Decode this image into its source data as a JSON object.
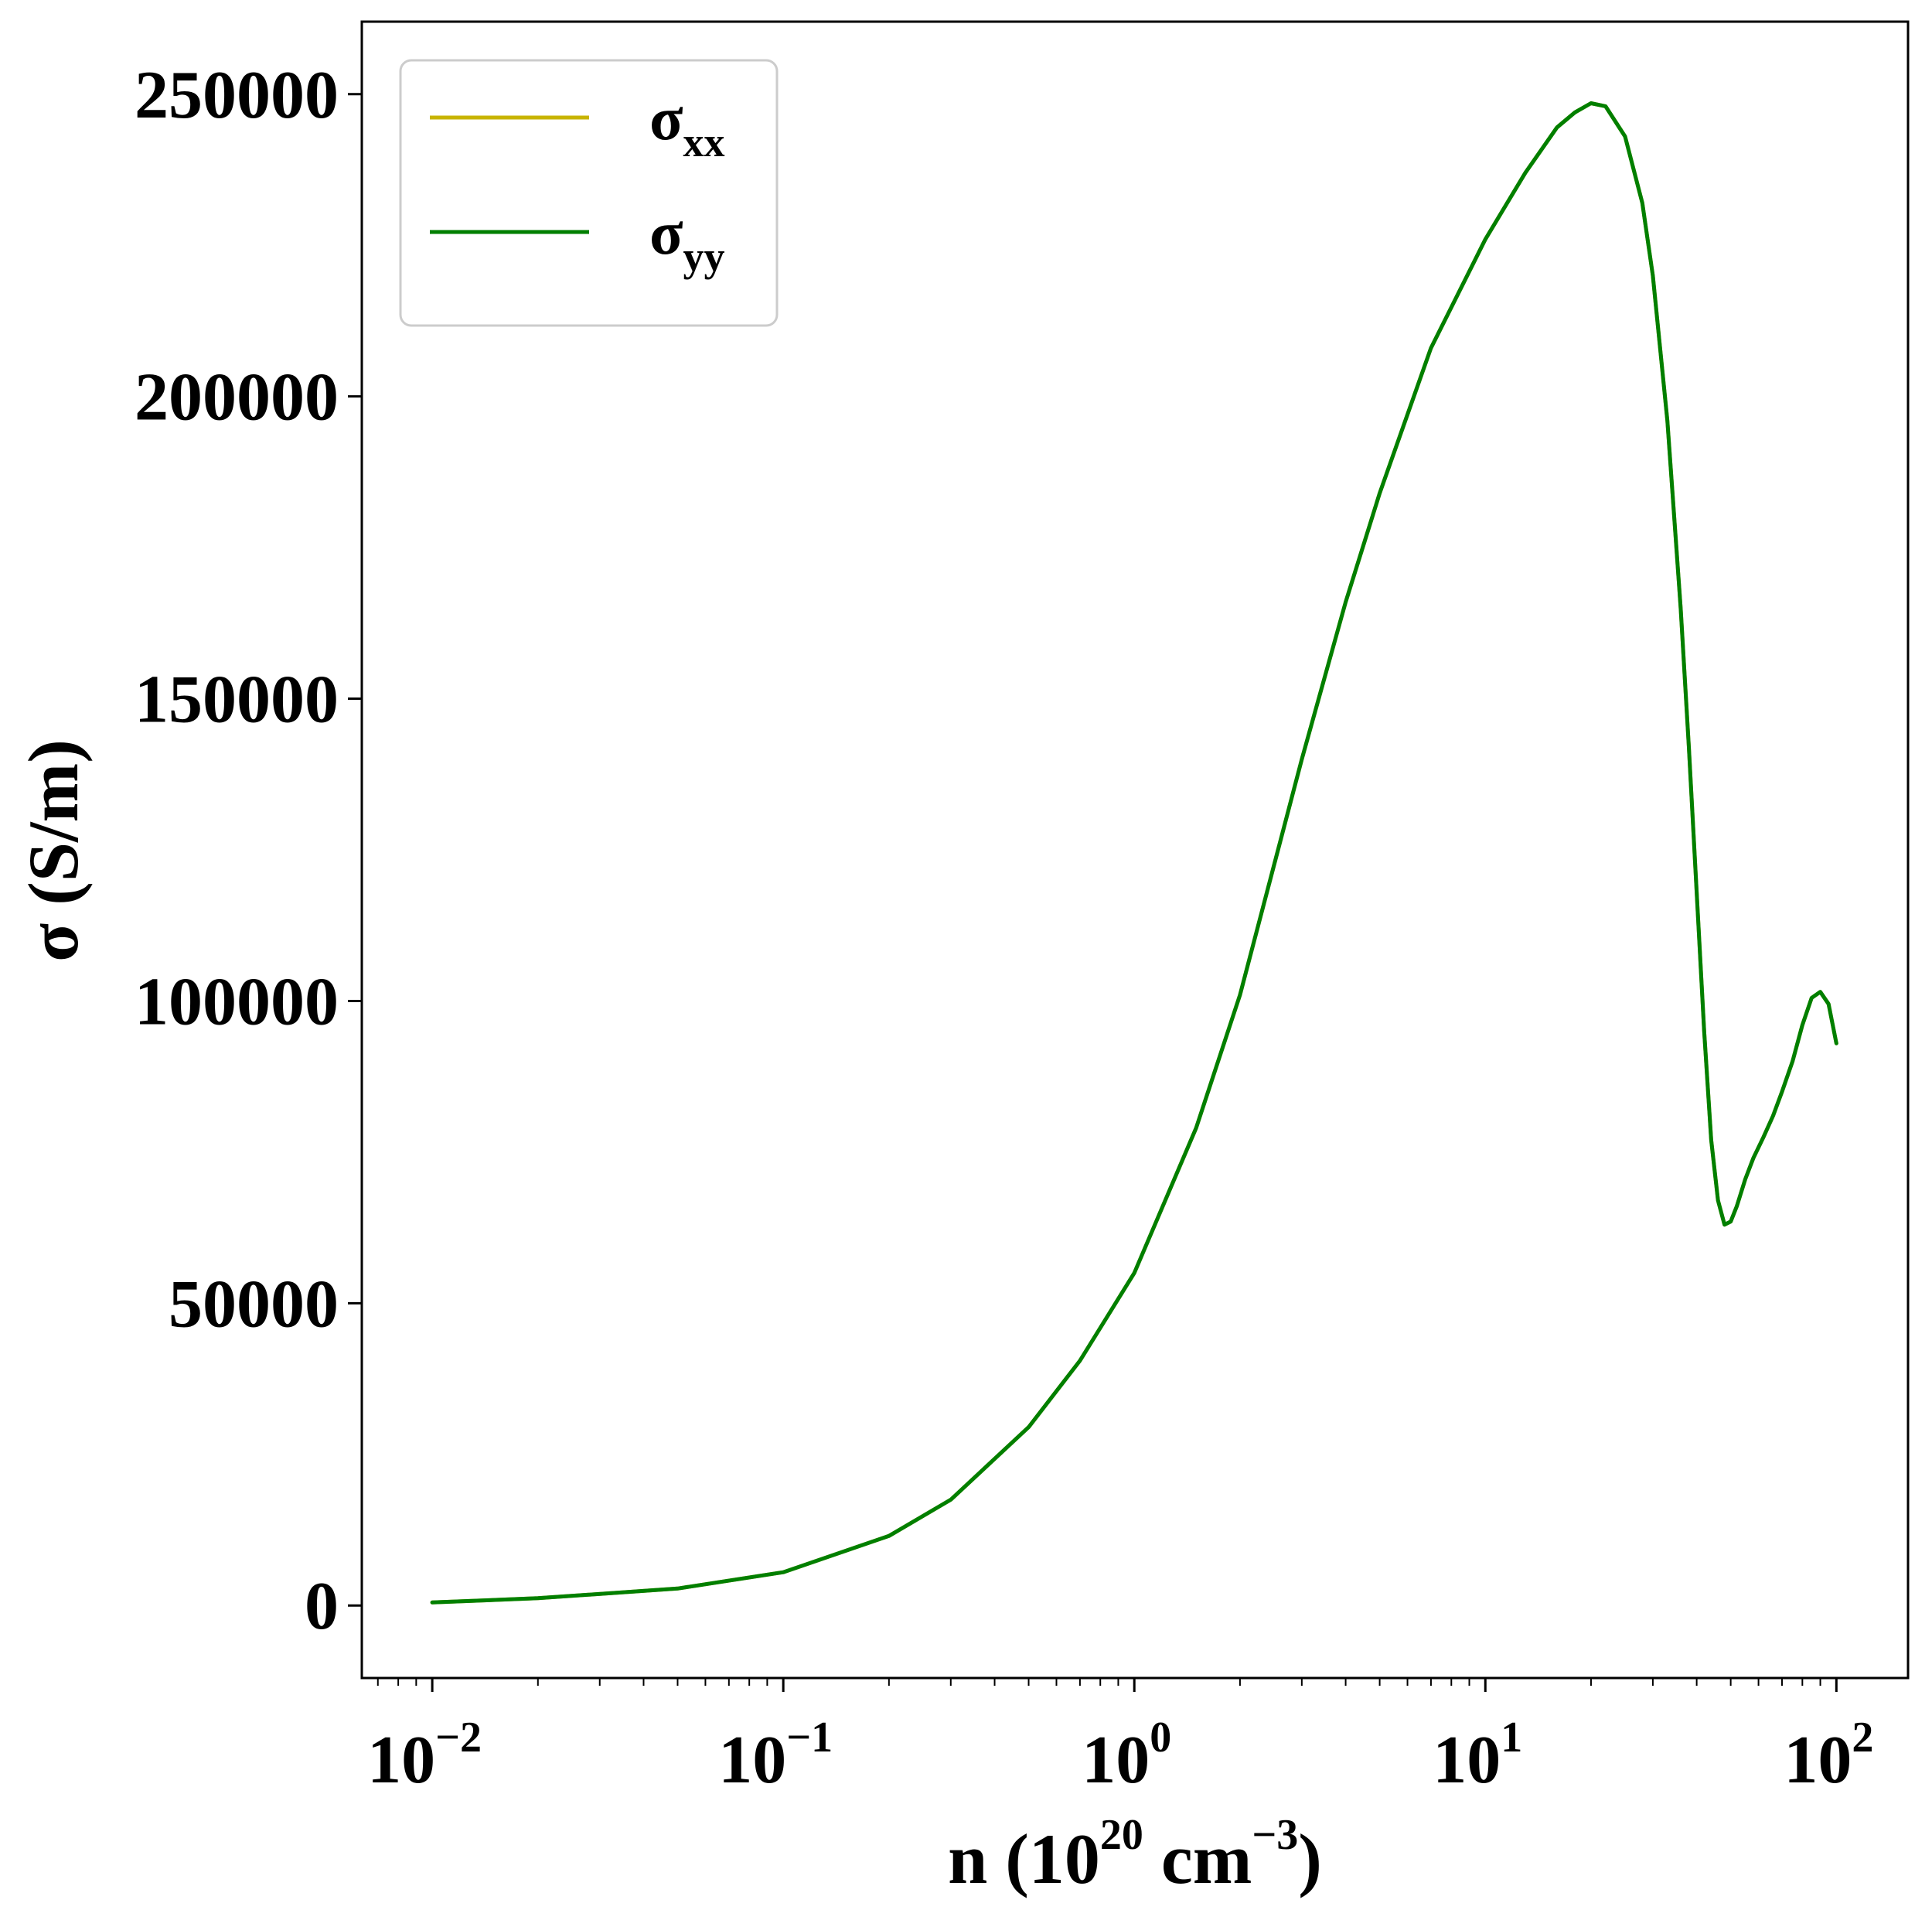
{
  "chart_data": {
    "type": "line",
    "xscale": "log",
    "xlim": [
      0.0063,
      160
    ],
    "ylim": [
      -12000,
      262000
    ],
    "xlabel": {
      "parts": [
        {
          "text": "n (10",
          "style": "normal"
        },
        {
          "text": "20",
          "style": "sup"
        },
        {
          "text": " cm",
          "style": "normal"
        },
        {
          "text": "−3",
          "style": "sup"
        },
        {
          "text": ")",
          "style": "normal"
        }
      ]
    },
    "ylabel": "σ (S/m)",
    "x_ticks": [
      {
        "value": 0.01,
        "base": "10",
        "exp": "−2"
      },
      {
        "value": 0.1,
        "base": "10",
        "exp": "−1"
      },
      {
        "value": 1,
        "base": "10",
        "exp": "0"
      },
      {
        "value": 10,
        "base": "10",
        "exp": "1"
      },
      {
        "value": 100,
        "base": "10",
        "exp": "2"
      }
    ],
    "y_ticks": [
      {
        "value": 0,
        "label": "0"
      },
      {
        "value": 50000,
        "label": "50000"
      },
      {
        "value": 100000,
        "label": "100000"
      },
      {
        "value": 150000,
        "label": "150000"
      },
      {
        "value": 200000,
        "label": "200000"
      },
      {
        "value": 250000,
        "label": "250000"
      }
    ],
    "legend": {
      "position": "top-left",
      "entries": [
        {
          "base": "σ",
          "sub": "xx",
          "color": "#c8b400"
        },
        {
          "base": "σ",
          "sub": "yy",
          "color": "#007f00"
        }
      ]
    },
    "grid": false,
    "series": [
      {
        "name": "σxx",
        "color": "#c8b400",
        "x": [
          0.01,
          0.02,
          0.05,
          0.1,
          0.2,
          0.3,
          0.5,
          0.7,
          1,
          1.5,
          2,
          3,
          4,
          5,
          7,
          10,
          13,
          16,
          18,
          20,
          22,
          25,
          28,
          30,
          33,
          36,
          38,
          40,
          42,
          44,
          46,
          48,
          50,
          52,
          55,
          58,
          62,
          66,
          70,
          75,
          80,
          85,
          90,
          95,
          100
        ],
        "y": [
          500,
          1200,
          2800,
          5500,
          11500,
          17500,
          29500,
          40500,
          55000,
          79000,
          101000,
          140000,
          166000,
          184000,
          208000,
          226000,
          237000,
          244500,
          247000,
          248500,
          248000,
          243000,
          232000,
          220000,
          196000,
          165000,
          142000,
          118000,
          95000,
          77000,
          67000,
          63000,
          63500,
          66000,
          70500,
          74000,
          77500,
          81000,
          85000,
          90000,
          96000,
          100500,
          101500,
          99500,
          93000
        ]
      },
      {
        "name": "σyy",
        "color": "#007f00",
        "x": [
          0.01,
          0.02,
          0.05,
          0.1,
          0.2,
          0.3,
          0.5,
          0.7,
          1,
          1.5,
          2,
          3,
          4,
          5,
          7,
          10,
          13,
          16,
          18,
          20,
          22,
          25,
          28,
          30,
          33,
          36,
          38,
          40,
          42,
          44,
          46,
          48,
          50,
          52,
          55,
          58,
          62,
          66,
          70,
          75,
          80,
          85,
          90,
          95,
          100
        ],
        "y": [
          500,
          1200,
          2800,
          5500,
          11500,
          17500,
          29500,
          40500,
          55000,
          79000,
          101000,
          140000,
          166000,
          184000,
          208000,
          226000,
          237000,
          244500,
          247000,
          248500,
          248000,
          243000,
          232000,
          220000,
          196000,
          165000,
          142000,
          118000,
          95000,
          77000,
          67000,
          63000,
          63500,
          66000,
          70500,
          74000,
          77500,
          81000,
          85000,
          90000,
          96000,
          100500,
          101500,
          99500,
          93000
        ]
      }
    ]
  }
}
